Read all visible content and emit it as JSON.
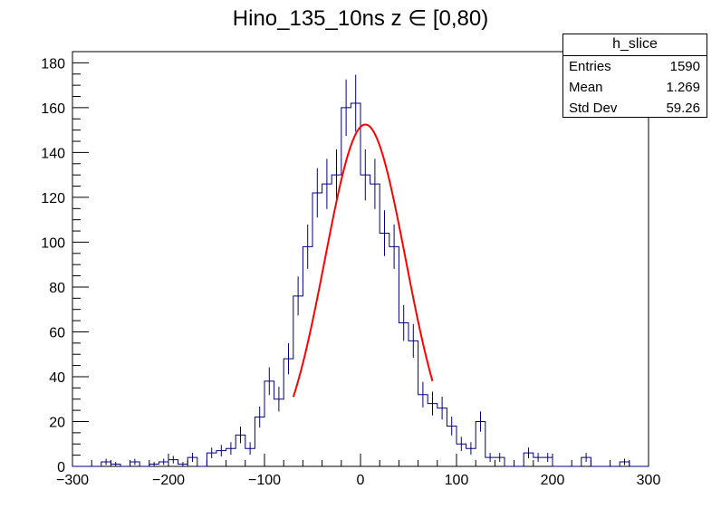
{
  "chart_data": {
    "type": "histogram",
    "title": "Hino_135_10ns z  ∈ [0,80)",
    "xlim": [
      -300,
      300
    ],
    "ylim": [
      0,
      185
    ],
    "x_ticks": [
      "−300",
      "−200",
      "−100",
      "0",
      "100",
      "200",
      "300"
    ],
    "y_ticks": [
      "0",
      "20",
      "40",
      "60",
      "80",
      "100",
      "120",
      "140",
      "160",
      "180"
    ],
    "bin_width": 10,
    "bin_centers": [
      -265,
      -255,
      -245,
      -235,
      -225,
      -215,
      -205,
      -195,
      -185,
      -175,
      -165,
      -155,
      -145,
      -135,
      -125,
      -115,
      -105,
      -95,
      -85,
      -75,
      -65,
      -55,
      -45,
      -35,
      -25,
      -15,
      -5,
      5,
      15,
      25,
      35,
      45,
      55,
      65,
      75,
      85,
      95,
      105,
      115,
      125,
      135,
      145,
      175,
      185,
      195,
      235,
      275
    ],
    "values": [
      2,
      1,
      0,
      2,
      0,
      1,
      2,
      3,
      1,
      4,
      0,
      6,
      7,
      8,
      14,
      8,
      22,
      38,
      30,
      48,
      76,
      98,
      122,
      126,
      130,
      160,
      162,
      130,
      126,
      104,
      98,
      64,
      56,
      32,
      28,
      26,
      18,
      10,
      8,
      20,
      4,
      4,
      6,
      4,
      4,
      4,
      2
    ],
    "errors": [
      1.4,
      1,
      0,
      1.4,
      0,
      1,
      1.4,
      1.7,
      1,
      2,
      0,
      2.4,
      2.6,
      2.8,
      3.7,
      2.8,
      4.7,
      6.2,
      5.5,
      6.9,
      8.7,
      9.9,
      11,
      11.2,
      11.4,
      12.6,
      12.7,
      11.4,
      11.2,
      10.2,
      9.9,
      8,
      7.5,
      5.7,
      5.3,
      5.1,
      4.2,
      3.2,
      2.8,
      4.5,
      2,
      2,
      2.4,
      2,
      2,
      2,
      1.4
    ],
    "fit": {
      "type": "gaussian",
      "amplitude": 152.5,
      "mean": 5,
      "sigma": 42,
      "range": [
        -70,
        75
      ],
      "color": "#ff0000"
    },
    "histogram_color": "#000080"
  },
  "stats": {
    "name": "h_slice",
    "rows": [
      {
        "label": "Entries",
        "value": "1590"
      },
      {
        "label": "Mean",
        "value": "1.269"
      },
      {
        "label": "Std Dev",
        "value": "59.26"
      }
    ]
  }
}
